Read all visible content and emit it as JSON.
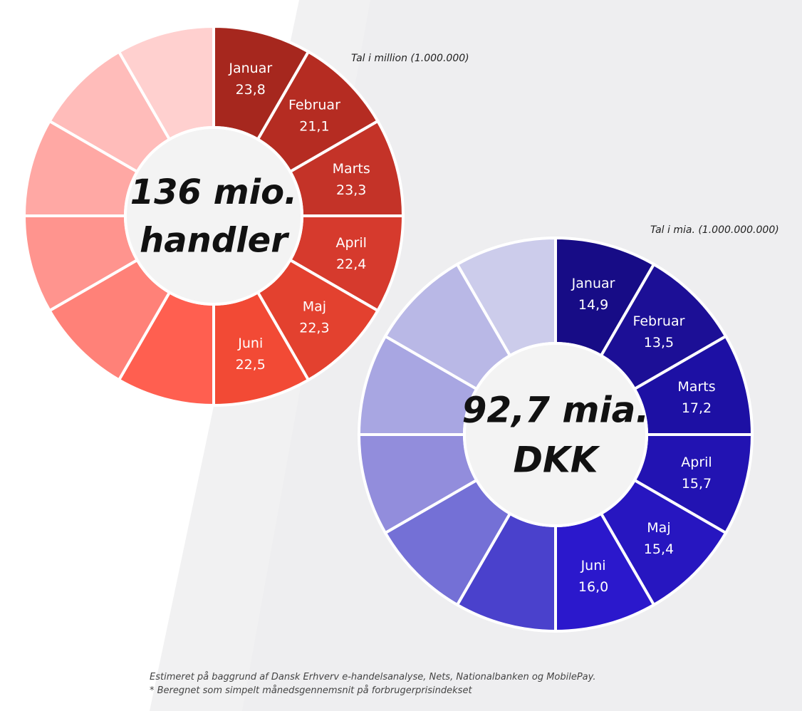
{
  "chart_data": [
    {
      "type": "pie",
      "donut": true,
      "unit_note": "Tal i million (1.000.000)",
      "center_text": [
        "136 mio.",
        "handler"
      ],
      "categories": [
        "Januar",
        "Februar",
        "Marts",
        "April",
        "Maj",
        "Juni",
        "",
        "",
        "",
        "",
        "",
        ""
      ],
      "value_labels": [
        "23,8",
        "21,1",
        "23,3",
        "22,4",
        "22,3",
        "22,5",
        "",
        "",
        "",
        "",
        "",
        ""
      ],
      "values": [
        23.8,
        21.1,
        23.3,
        22.4,
        22.3,
        22.5,
        null,
        null,
        null,
        null,
        null,
        null
      ],
      "segment_colors": [
        "#a6271e",
        "#b52c22",
        "#c43328",
        "#d63a2d",
        "#e3412f",
        "#f24a35",
        "#ff5f50",
        "#ff8178",
        "#ff948e",
        "#ffa8a4",
        "#ffbcba",
        "#ffd0cf"
      ]
    },
    {
      "type": "pie",
      "donut": true,
      "unit_note": "Tal i mia. (1.000.000.000)",
      "center_text": [
        "92,7 mia.",
        "DKK"
      ],
      "categories": [
        "Januar",
        "Februar",
        "Marts",
        "April",
        "Maj",
        "Juni",
        "",
        "",
        "",
        "",
        "",
        ""
      ],
      "value_labels": [
        "14,9",
        "13,5",
        "17,2",
        "15,7",
        "15,4",
        "16,0",
        "",
        "",
        "",
        "",
        "",
        ""
      ],
      "values": [
        14.9,
        13.5,
        17.2,
        15.7,
        15.4,
        16.0,
        null,
        null,
        null,
        null,
        null,
        null
      ],
      "segment_colors": [
        "#170c86",
        "#1c0f96",
        "#1d10a4",
        "#2213b2",
        "#2716c0",
        "#2b18cc",
        "#4a41cc",
        "#7470d6",
        "#928ddc",
        "#a8a6e2",
        "#b9b8e6",
        "#cccceb"
      ]
    }
  ],
  "footnotes": [
    "Estimeret på baggrund af Dansk Erhverv e-handelsanalyse, Nets, Nationalbanken og MobilePay.",
    "* Beregnet som simpelt månedsgennemsnit på forbrugerprisindekset"
  ]
}
